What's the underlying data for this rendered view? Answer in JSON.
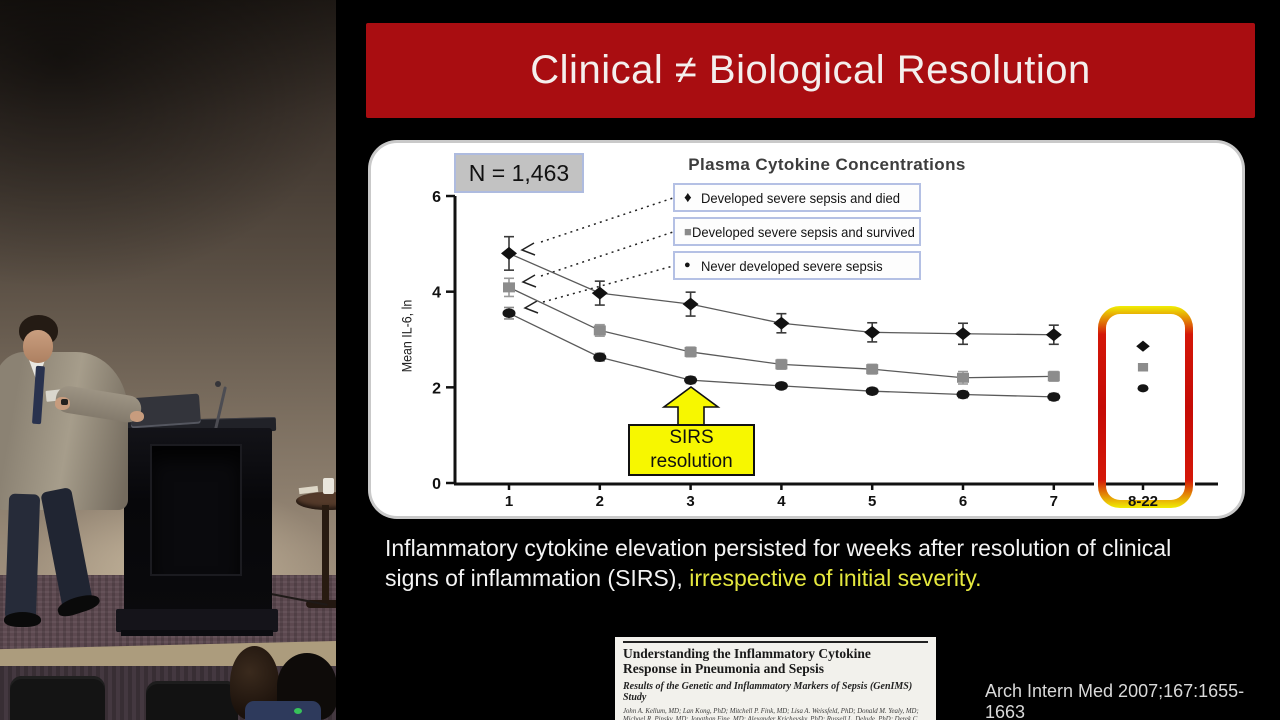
{
  "slide": {
    "title": "Clinical ≠ Biological Resolution",
    "caption_line1": "Inflammatory cytokine elevation persisted for weeks after resolution of clinical",
    "caption_line2_white": "signs of inflammation (SIRS), ",
    "caption_line2_yellow": "irrespective of initial severity.",
    "citation": "Arch Intern Med 2007;167:1655-1663",
    "colors": {
      "banner_red": "#a90d11",
      "caption_yellow": "#e5e83e",
      "annotation_yellow": "#f7f700",
      "highlight_border_red": "#c50b06",
      "highlight_border_yellow": "#f0ee04",
      "legend_border_blue": "#b4c0e4"
    }
  },
  "chart": {
    "chart_data": {
      "type": "line",
      "title": "Plasma Cytokine Concentrations",
      "ylabel": "Mean IL-6, ln",
      "xlabel": "",
      "n_label": "N = 1,463",
      "x_tick_labels": [
        "1",
        "2",
        "3",
        "4",
        "5",
        "6",
        "7",
        "8-22"
      ],
      "y_tick_labels": [
        "0",
        "2",
        "4",
        "6"
      ],
      "ylim": [
        0,
        6
      ],
      "grid": false,
      "legend_position": "upper center",
      "series": [
        {
          "name": "Developed severe sepsis and died",
          "marker": "diamond",
          "marker_glyph": "♦",
          "color": "#111111",
          "x": [
            1,
            2,
            3,
            4,
            5,
            6,
            7
          ],
          "values": [
            4.8,
            3.97,
            3.74,
            3.34,
            3.15,
            3.12,
            3.1
          ],
          "errors": [
            0.35,
            0.25,
            0.25,
            0.2,
            0.2,
            0.22,
            0.2
          ],
          "followup_8_22": 2.86
        },
        {
          "name": "Developed severe sepsis and survived",
          "marker": "square",
          "marker_glyph": "■",
          "color": "#8c8c8c",
          "x": [
            1,
            2,
            3,
            4,
            5,
            6,
            7
          ],
          "values": [
            4.09,
            3.19,
            2.74,
            2.48,
            2.38,
            2.2,
            2.23
          ],
          "errors": [
            0.19,
            0.12,
            0.1,
            0.1,
            0.1,
            0.13,
            0.1
          ],
          "followup_8_22": 2.42
        },
        {
          "name": "Never developed severe sepsis",
          "marker": "circle",
          "marker_glyph": "●",
          "color": "#151515",
          "x": [
            1,
            2,
            3,
            4,
            5,
            6,
            7
          ],
          "values": [
            3.55,
            2.63,
            2.15,
            2.03,
            1.92,
            1.85,
            1.8
          ],
          "errors": [
            0.12,
            0.08,
            0.07,
            0.06,
            0.06,
            0.07,
            0.07
          ],
          "followup_8_22": 1.98
        }
      ],
      "annotation": {
        "line1": "SIRS",
        "line2": "resolution"
      },
      "followup_label": "8-22"
    }
  },
  "paper": {
    "title": "Understanding the Inflammatory Cytokine Response in Pneumonia and Sepsis",
    "subtitle": "Results of the Genetic and Inflammatory Markers of Sepsis (GenIMS) Study",
    "authors": "John A. Kellum, MD; Lan Kong, PhD; Mitchell P. Fink, MD; Lisa A. Weissfeld, PhD; Donald M. Yealy, MD; Michael R. Pinsky, MD; Jonathan Fine, MD; Alexander Krichevsky, PhD; Russell L. Delude, PhD; Derek C. Angus, MD, MPH; for the GenIMS Investigators"
  }
}
